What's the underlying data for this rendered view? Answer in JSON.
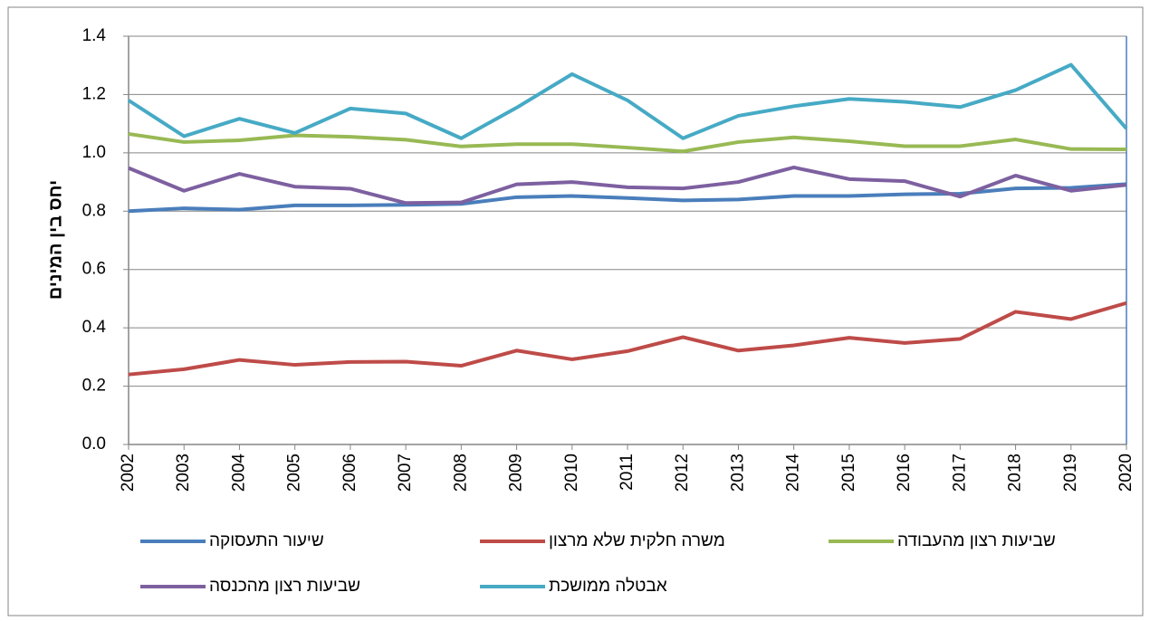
{
  "chart_data": {
    "type": "line",
    "y_label": "יחס בין המינים",
    "categories": [
      "2002",
      "2003",
      "2004",
      "2005",
      "2006",
      "2007",
      "2008",
      "2009",
      "2010",
      "2011",
      "2012",
      "2013",
      "2014",
      "2015",
      "2016",
      "2017",
      "2018",
      "2019",
      "2020"
    ],
    "series": [
      {
        "name": "שיעור התעסוקה",
        "color": "#4a7ebb",
        "values": [
          0.8,
          0.81,
          0.805,
          0.82,
          0.82,
          0.822,
          0.825,
          0.848,
          0.852,
          0.845,
          0.837,
          0.84,
          0.852,
          0.852,
          0.858,
          0.86,
          0.878,
          0.88,
          0.893
        ]
      },
      {
        "name": "משרה חלקית שלא מרצון",
        "color": "#be4b48",
        "values": [
          0.24,
          0.258,
          0.29,
          0.273,
          0.283,
          0.284,
          0.27,
          0.322,
          0.292,
          0.32,
          0.368,
          0.322,
          0.34,
          0.366,
          0.348,
          0.362,
          0.455,
          0.43,
          0.485
        ]
      },
      {
        "name": "שביעות רצון מהעבודה",
        "color": "#98b954",
        "values": [
          1.065,
          1.037,
          1.043,
          1.06,
          1.055,
          1.045,
          1.022,
          1.03,
          1.03,
          1.018,
          1.005,
          1.037,
          1.053,
          1.04,
          1.023,
          1.023,
          1.046,
          1.013,
          1.012
        ]
      },
      {
        "name": "שביעות רצון מהכנסה",
        "color": "#7d60a0",
        "values": [
          0.948,
          0.87,
          0.928,
          0.884,
          0.877,
          0.828,
          0.83,
          0.892,
          0.9,
          0.882,
          0.878,
          0.9,
          0.95,
          0.91,
          0.903,
          0.85,
          0.922,
          0.87,
          0.89
        ]
      },
      {
        "name": "אבטלה ממושכת",
        "color": "#46aac5",
        "values": [
          1.18,
          1.057,
          1.117,
          1.068,
          1.152,
          1.135,
          1.05,
          1.155,
          1.27,
          1.18,
          1.05,
          1.127,
          1.16,
          1.185,
          1.175,
          1.157,
          1.215,
          1.302,
          1.083
        ]
      }
    ],
    "ylim": [
      0,
      1.4
    ],
    "yticks": [
      {
        "value": 0,
        "label": "0.0"
      },
      0.2,
      0.4,
      0.6,
      0.8,
      {
        "value": 1,
        "label": "1.0"
      },
      1.2,
      1.4
    ],
    "grid": true,
    "legend": "bottom"
  }
}
